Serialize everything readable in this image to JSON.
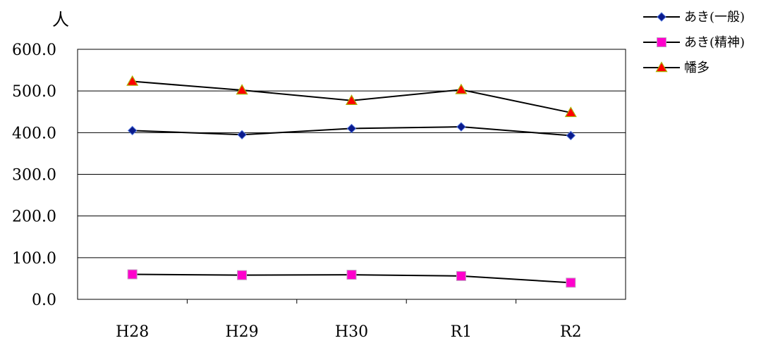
{
  "chart_data": {
    "type": "line",
    "unit_label": "人",
    "categories": [
      "H28",
      "H29",
      "H30",
      "R1",
      "R2"
    ],
    "ylim": [
      0,
      600
    ],
    "y_ticks": [
      "0.0",
      "100.0",
      "200.0",
      "300.0",
      "400.0",
      "500.0",
      "600.0"
    ],
    "grid": true,
    "legend_position": "top-right",
    "series": [
      {
        "name": "あき(一般)",
        "marker": "diamond",
        "color": "#0a1a8c",
        "values": [
          405,
          395,
          410,
          414,
          393
        ]
      },
      {
        "name": "あき(精神)",
        "marker": "square",
        "color": "#ff00cc",
        "values": [
          60,
          58,
          59,
          56,
          40
        ]
      },
      {
        "name": "幡多",
        "marker": "triangle",
        "color": "#ff0000",
        "values": [
          523,
          502,
          477,
          503,
          448
        ]
      }
    ]
  }
}
